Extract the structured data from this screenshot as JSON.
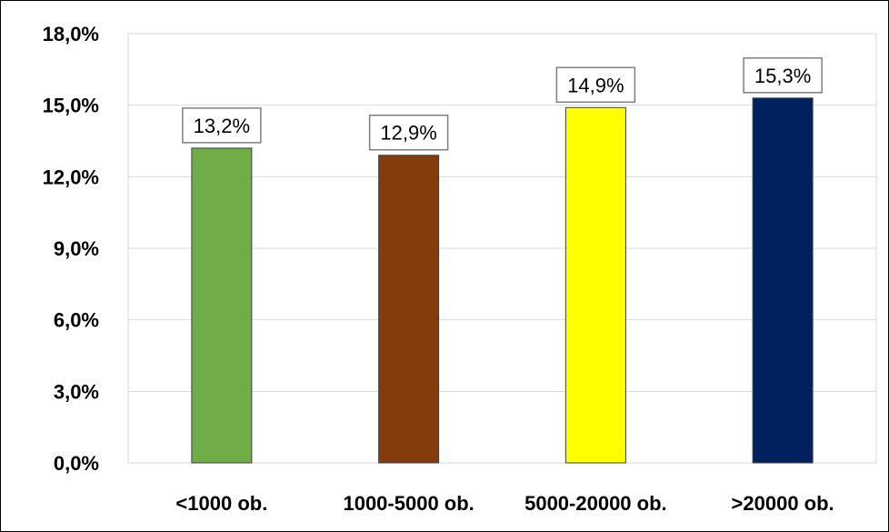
{
  "chart_data": {
    "type": "bar",
    "categories": [
      "<1000 ob.",
      "1000-5000 ob.",
      "5000-20000 ob.",
      ">20000 ob."
    ],
    "values": [
      13.2,
      12.9,
      14.9,
      15.3
    ],
    "data_labels": [
      "13,2%",
      "12,9%",
      "14,9%",
      "15,3%"
    ],
    "colors": [
      "#70AD47",
      "#843C0C",
      "#FFFF00",
      "#002060"
    ],
    "y_ticks": [
      "0,0%",
      "3,0%",
      "6,0%",
      "9,0%",
      "12,0%",
      "15,0%",
      "18,0%"
    ],
    "ylim": [
      0,
      18
    ],
    "y_tick_step": 3,
    "title": "",
    "xlabel": "",
    "ylabel": "",
    "grid": true,
    "legend": "none"
  }
}
